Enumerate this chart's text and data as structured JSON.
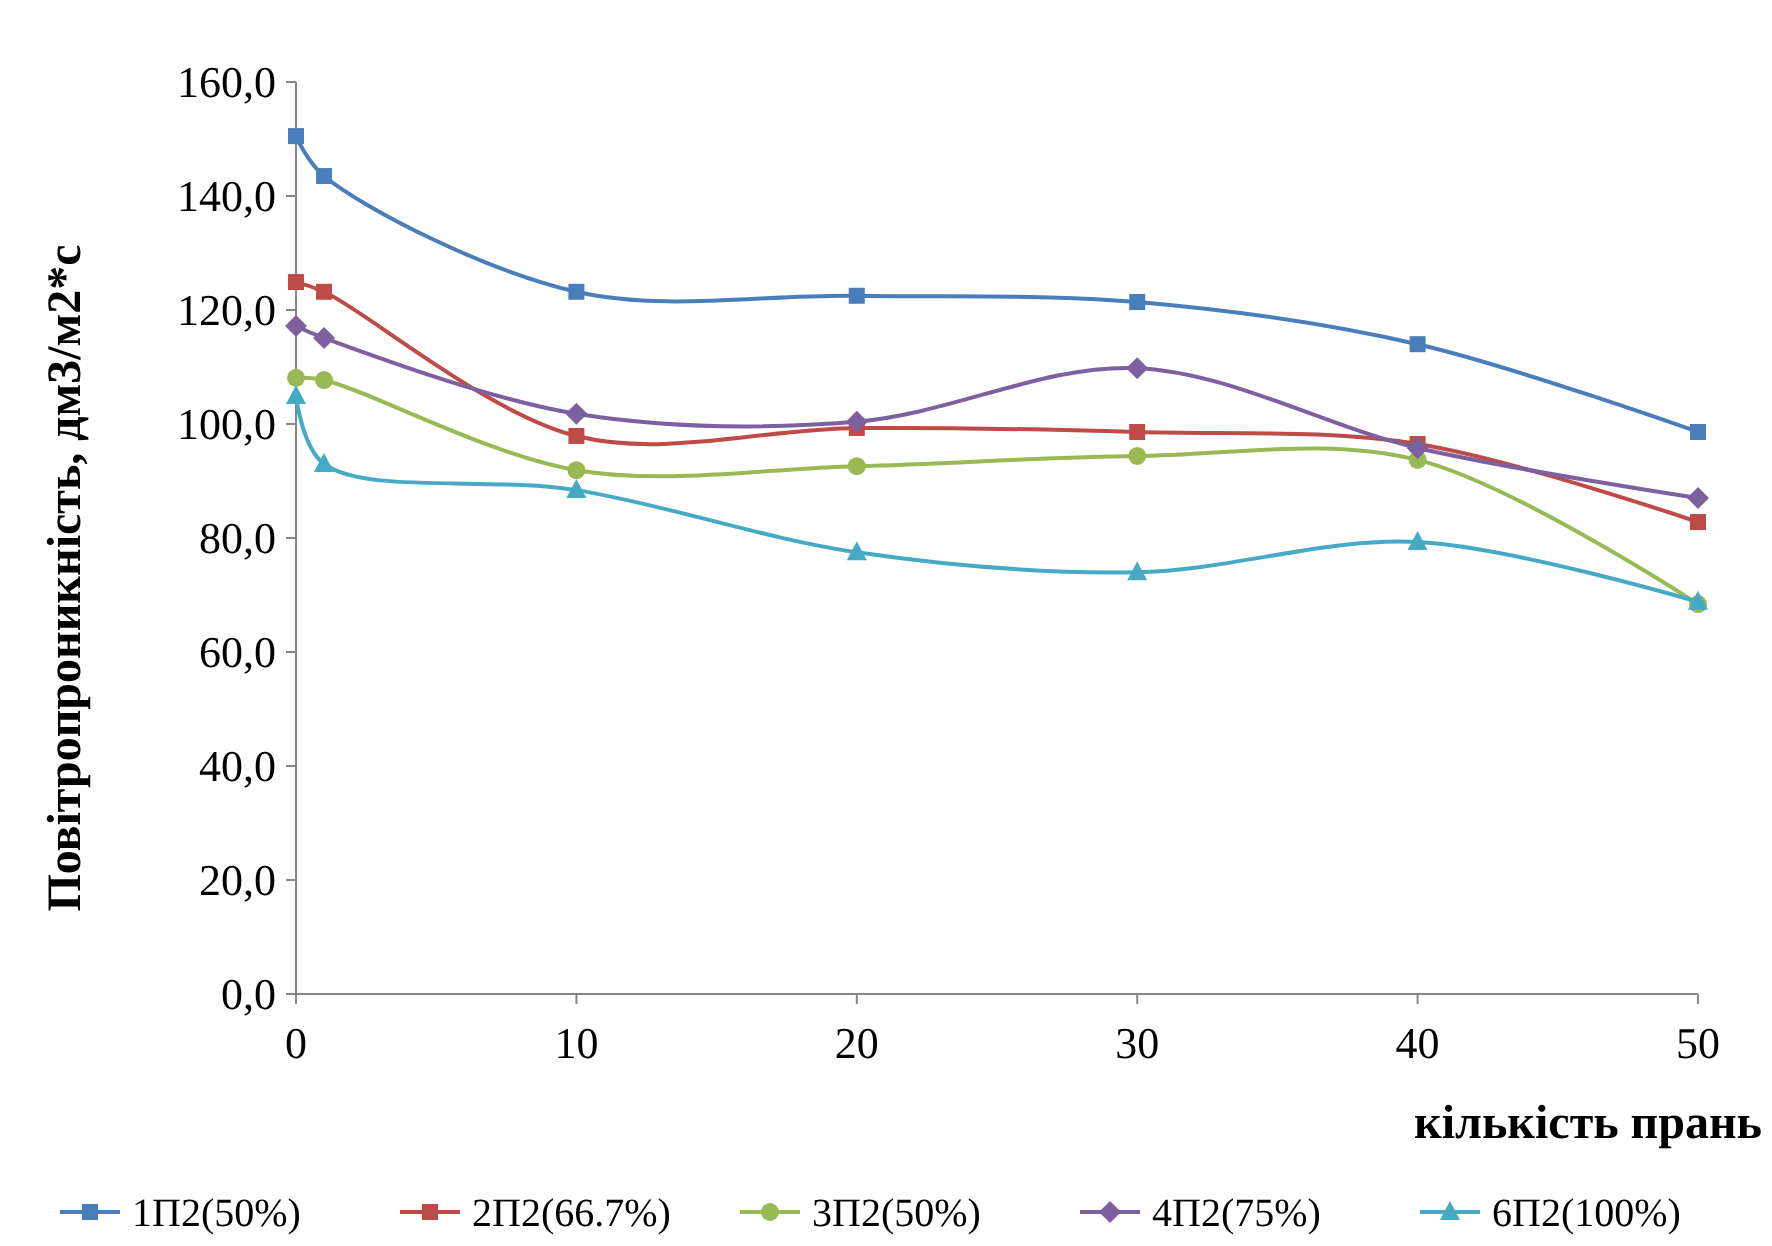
{
  "chart_data": {
    "type": "line",
    "xlabel": "кількість прань",
    "ylabel": "Повітропроникність, дм3/м2*с",
    "x": [
      0,
      1,
      10,
      20,
      30,
      40,
      50
    ],
    "xlim": [
      0,
      50
    ],
    "xticks": [
      0,
      10,
      20,
      30,
      40,
      50
    ],
    "ylim": [
      0,
      160
    ],
    "yticks": [
      {
        "value": 0,
        "label": "0,0"
      },
      {
        "value": 20,
        "label": "20,0"
      },
      {
        "value": 40,
        "label": "40,0"
      },
      {
        "value": 60,
        "label": "60,0"
      },
      {
        "value": 80,
        "label": "80,0"
      },
      {
        "value": 100,
        "label": "100,0"
      },
      {
        "value": 120,
        "label": "120,0"
      },
      {
        "value": 140,
        "label": "140,0"
      },
      {
        "value": 160,
        "label": "160,0"
      }
    ],
    "grid": false,
    "legend": "bottom",
    "series": [
      {
        "name": "1П2(50%)",
        "color": "#4a7ebb",
        "marker": "square",
        "values": [
          150.5,
          143.5,
          123.2,
          122.5,
          121.4,
          114,
          98.6
        ]
      },
      {
        "name": "2П2(66.7%)",
        "color": "#be4b48",
        "marker": "square",
        "values": [
          124.9,
          123.2,
          97.9,
          99.3,
          98.6,
          96.5,
          82.8
        ]
      },
      {
        "name": "3П2(50%)",
        "color": "#98b954",
        "marker": "circle",
        "values": [
          108.1,
          107.7,
          91.9,
          92.6,
          94.4,
          93.7,
          68.4
        ]
      },
      {
        "name": "4П2(75%)",
        "color": "#7d60a0",
        "marker": "diamond",
        "values": [
          117.2,
          115.1,
          101.8,
          100.4,
          109.8,
          95.8,
          87.0
        ]
      },
      {
        "name": "6П2(100%)",
        "color": "#46aac5",
        "marker": "triangle",
        "values": [
          104.9,
          93.0,
          88.4,
          77.5,
          74.0,
          79.3,
          68.8
        ]
      }
    ]
  }
}
